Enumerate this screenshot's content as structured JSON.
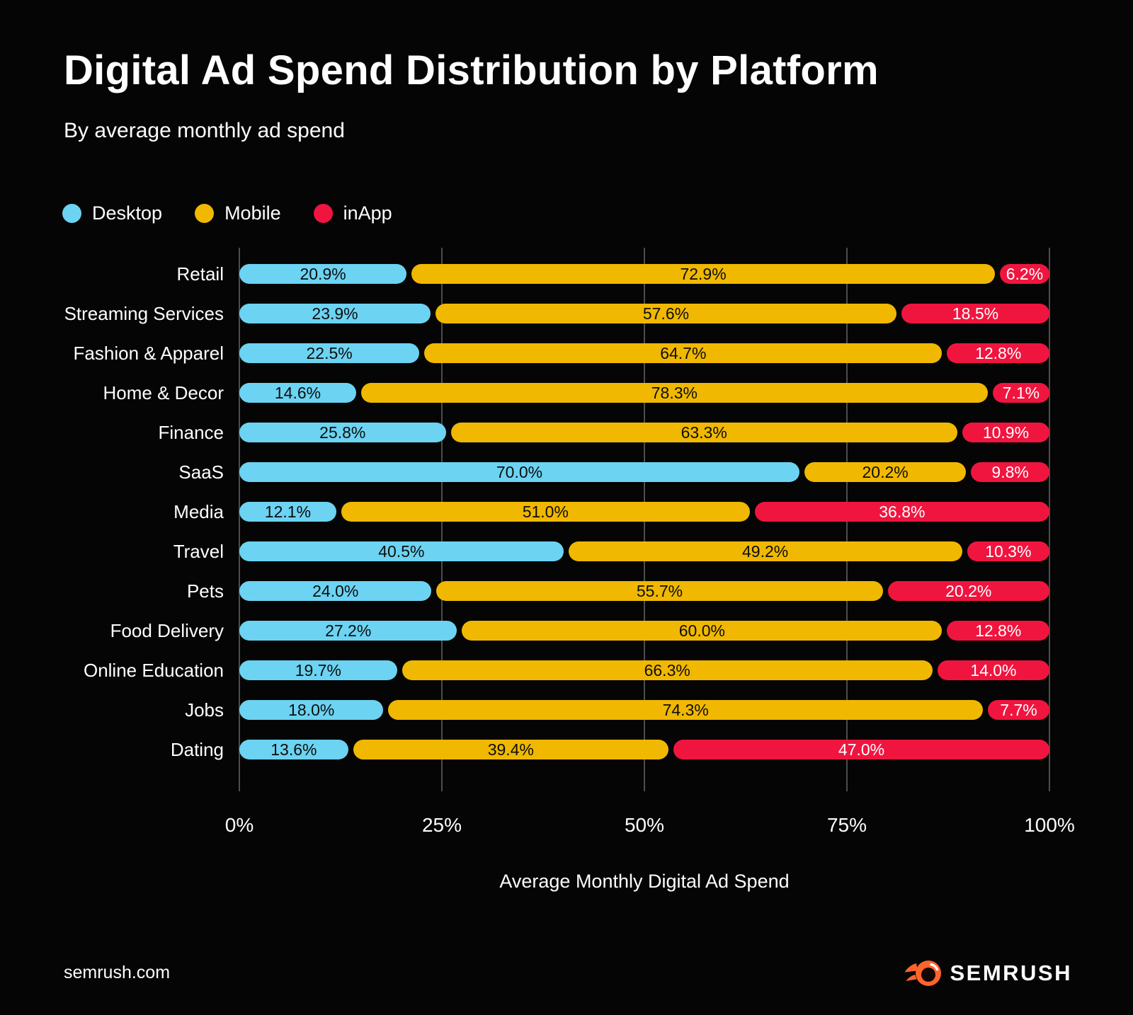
{
  "header": {
    "title": "Digital Ad Spend Distribution by Platform",
    "subtitle": "By average monthly ad spend"
  },
  "legend": {
    "items": [
      {
        "label": "Desktop",
        "color": "#6CD3F2"
      },
      {
        "label": "Mobile",
        "color": "#F0B800"
      },
      {
        "label": "inApp",
        "color": "#F0153F"
      }
    ]
  },
  "chart_data": {
    "type": "bar",
    "orientation": "horizontal",
    "stacked": true,
    "title": "Digital Ad Spend Distribution by Platform",
    "subtitle": "By average monthly ad spend",
    "categories": [
      "Retail",
      "Streaming Services",
      "Fashion & Apparel",
      "Home & Decor",
      "Finance",
      "SaaS",
      "Media",
      "Travel",
      "Pets",
      "Food Delivery",
      "Online Education",
      "Jobs",
      "Dating"
    ],
    "series": [
      {
        "name": "Desktop",
        "color": "#6CD3F2",
        "text_color": "#0d0d0d",
        "values": [
          20.9,
          23.9,
          22.5,
          14.6,
          25.8,
          70.0,
          12.1,
          40.5,
          24.0,
          27.2,
          19.7,
          18.0,
          13.6
        ]
      },
      {
        "name": "Mobile",
        "color": "#F0B800",
        "text_color": "#0d0d0d",
        "values": [
          72.9,
          57.6,
          64.7,
          78.3,
          63.3,
          20.2,
          51.0,
          49.2,
          55.7,
          60.0,
          66.3,
          74.3,
          39.4
        ]
      },
      {
        "name": "inApp",
        "color": "#F0153F",
        "text_color": "#ffffff",
        "values": [
          6.2,
          18.5,
          12.8,
          7.1,
          10.9,
          9.8,
          36.8,
          10.3,
          20.2,
          12.8,
          14.0,
          7.7,
          47.0
        ]
      }
    ],
    "xlabel": "Average Monthly Digital Ad Spend",
    "x_ticks": [
      "0%",
      "25%",
      "50%",
      "75%",
      "100%"
    ],
    "xlim": [
      0,
      100
    ],
    "grid": true,
    "gridline_color": "#4d4d4d",
    "legend_position": "top-left",
    "value_suffix": "%"
  },
  "footer": {
    "site": "semrush.com",
    "brand": "SEMRUSH",
    "brand_color": "#FF642D"
  }
}
